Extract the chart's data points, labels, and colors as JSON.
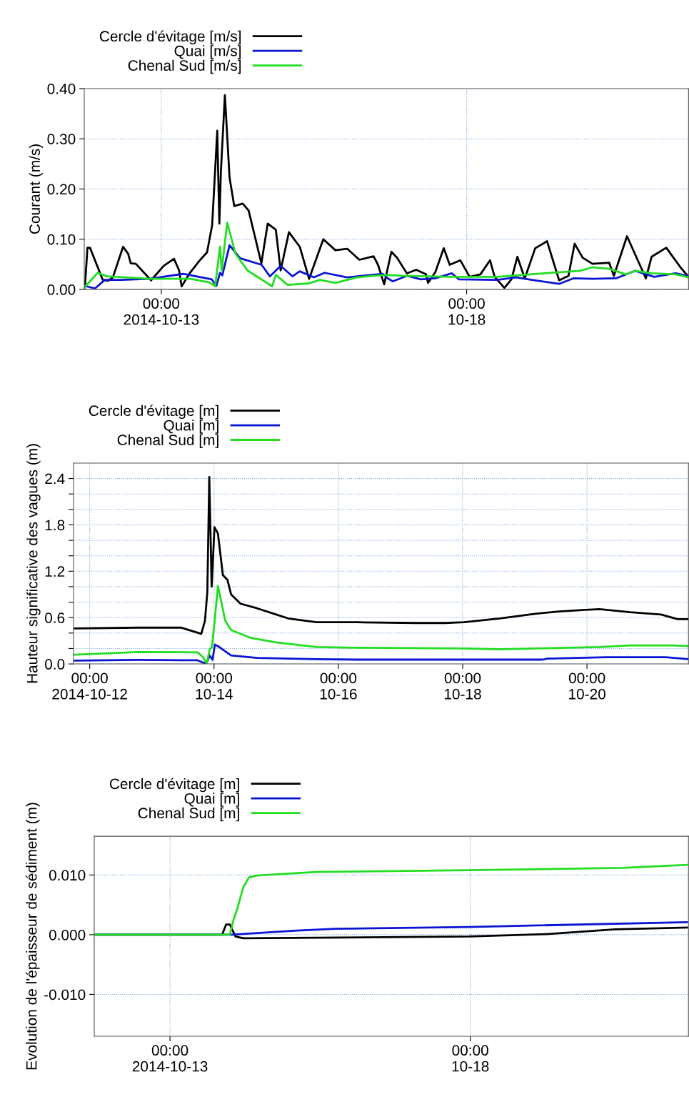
{
  "chart_data": [
    {
      "type": "line",
      "ylabel": "Courant (m/s)",
      "xlim": [
        "2014-10-11T17:45",
        "2014-10-21T15:10"
      ],
      "xticks": [
        {
          "value": "2014-10-13T00:00",
          "label": "00:00\n2014-10-13"
        },
        {
          "value": "2014-10-18T00:00",
          "label": "00:00\n10-18"
        }
      ],
      "ylim": [
        0,
        0.4
      ],
      "yticks": [
        {
          "value": 0,
          "label": "0.00"
        },
        {
          "value": 0.1,
          "label": "0.10"
        },
        {
          "value": 0.2,
          "label": "0.20"
        },
        {
          "value": 0.3,
          "label": "0.30"
        },
        {
          "value": 0.4,
          "label": "0.40"
        }
      ],
      "grid": true,
      "legend": "top left",
      "line_style": "solid",
      "marker": "none",
      "series": [
        {
          "name": "Cercle d'évitage [m/s]",
          "color": "#000000",
          "x": [
            "2014-10-11T18:00",
            "2014-10-11T19:00",
            "2014-10-11T20:00",
            "2014-10-12T01:00",
            "2014-10-12T03:00",
            "2014-10-12T05:00",
            "2014-10-12T09:00",
            "2014-10-12T11:00",
            "2014-10-12T12:00",
            "2014-10-12T14:00",
            "2014-10-12T20:00",
            "2014-10-13T01:00",
            "2014-10-13T05:00",
            "2014-10-13T07:00",
            "2014-10-13T08:00",
            "2014-10-13T11:00",
            "2014-10-13T15:00",
            "2014-10-13T18:00",
            "2014-10-13T20:00",
            "2014-10-13T22:00",
            "2014-10-13T22:50",
            "2014-10-13T23:25",
            "2014-10-14T01:00",
            "2014-10-14T02:50",
            "2014-10-14T04:40",
            "2014-10-14T08:00",
            "2014-10-14T10:20",
            "2014-10-14T15:20",
            "2014-10-14T17:50",
            "2014-10-14T21:00",
            "2014-10-14T22:55",
            "2014-10-15T02:10",
            "2014-10-15T06:25",
            "2014-10-15T10:05",
            "2014-10-15T15:40",
            "2014-10-15T20:25",
            "2014-10-16T01:05",
            "2014-10-16T05:50",
            "2014-10-16T11:25",
            "2014-10-16T13:10",
            "2014-10-16T15:35",
            "2014-10-16T18:25",
            "2014-10-16T20:40",
            "2014-10-17T00:30",
            "2014-10-17T04:10",
            "2014-10-17T08:00",
            "2014-10-17T08:50",
            "2014-10-17T11:40",
            "2014-10-17T15:00",
            "2014-10-17T17:20",
            "2014-10-17T21:30",
            "2014-10-18T01:10",
            "2014-10-18T05:25",
            "2014-10-18T09:10",
            "2014-10-18T11:00",
            "2014-10-18T14:50",
            "2014-10-18T17:35",
            "2014-10-18T19:55",
            "2014-10-18T22:50",
            "2014-10-19T02:55",
            "2014-10-19T07:35",
            "2014-10-19T12:20",
            "2014-10-19T16:00",
            "2014-10-19T18:25",
            "2014-10-19T21:35",
            "2014-10-20T01:25",
            "2014-10-20T08:00",
            "2014-10-20T09:50",
            "2014-10-20T15:00",
            "2014-10-20T18:10",
            "2014-10-20T22:25",
            "2014-10-21T00:40",
            "2014-10-21T06:25",
            "2014-10-21T12:00",
            "2014-10-21T14:50"
          ],
          "values": [
            0.004,
            0.083,
            0.083,
            0.019,
            0.017,
            0.024,
            0.085,
            0.071,
            0.052,
            0.051,
            0.018,
            0.047,
            0.061,
            0.038,
            0.006,
            0.031,
            0.057,
            0.074,
            0.128,
            0.316,
            0.131,
            0.233,
            0.387,
            0.223,
            0.166,
            0.171,
            0.157,
            0.052,
            0.131,
            0.119,
            0.038,
            0.114,
            0.085,
            0.021,
            0.1,
            0.078,
            0.081,
            0.059,
            0.066,
            0.049,
            0.01,
            0.075,
            0.063,
            0.032,
            0.039,
            0.03,
            0.013,
            0.034,
            0.082,
            0.049,
            0.058,
            0.025,
            0.03,
            0.058,
            0.025,
            0.003,
            0.02,
            0.065,
            0.022,
            0.082,
            0.096,
            0.018,
            0.027,
            0.091,
            0.063,
            0.051,
            0.053,
            0.027,
            0.106,
            0.07,
            0.022,
            0.065,
            0.083,
            0.044,
            0.027
          ]
        },
        {
          "name": "Quai [m/s]",
          "color": "#0a14d2",
          "x": [
            "2014-10-11T18:00",
            "2014-10-11T22:00",
            "2014-10-12T01:50",
            "2014-10-12T08:20",
            "2014-10-12T19:30",
            "2014-10-13T08:35",
            "2014-10-13T19:50",
            "2014-10-13T21:40",
            "2014-10-13T23:05",
            "2014-10-14T00:00",
            "2014-10-14T02:50",
            "2014-10-14T07:00",
            "2014-10-14T15:25",
            "2014-10-14T18:40",
            "2014-10-14T22:55",
            "2014-10-15T03:35",
            "2014-10-15T06:25",
            "2014-10-15T12:00",
            "2014-10-15T16:10",
            "2014-10-16T01:05",
            "2014-10-16T15:05",
            "2014-10-16T17:00",
            "2014-10-16T18:55",
            "2014-10-17T00:30",
            "2014-10-17T06:00",
            "2014-10-17T11:40",
            "2014-10-17T18:10",
            "2014-10-17T21:00",
            "2014-10-18T12:00",
            "2014-10-18T19:25",
            "2014-10-19T02:55",
            "2014-10-19T12:20",
            "2014-10-19T17:55",
            "2014-10-20T01:25",
            "2014-10-20T10:40",
            "2014-10-20T18:10",
            "2014-10-21T01:40",
            "2014-10-21T10:05",
            "2014-10-21T14:50"
          ],
          "values": [
            0.007,
            0.002,
            0.019,
            0.019,
            0.021,
            0.031,
            0.02,
            0.007,
            0.033,
            0.028,
            0.088,
            0.062,
            0.049,
            0.026,
            0.047,
            0.026,
            0.036,
            0.024,
            0.033,
            0.024,
            0.031,
            0.022,
            0.016,
            0.027,
            0.02,
            0.022,
            0.032,
            0.02,
            0.019,
            0.024,
            0.018,
            0.011,
            0.022,
            0.021,
            0.022,
            0.037,
            0.025,
            0.032,
            0.027
          ]
        },
        {
          "name": "Chenal Sud [m/s]",
          "color": "#22dd22",
          "x": [
            "2014-10-11T18:00",
            "2014-10-11T23:00",
            "2014-10-12T02:40",
            "2014-10-12T19:30",
            "2014-10-13T11:25",
            "2014-10-13T18:55",
            "2014-10-13T21:10",
            "2014-10-13T23:05",
            "2014-10-13T23:45",
            "2014-10-14T01:55",
            "2014-10-14T05:10",
            "2014-10-14T09:50",
            "2014-10-14T19:35",
            "2014-10-14T21:00",
            "2014-10-15T01:40",
            "2014-10-15T10:05",
            "2014-10-15T14:20",
            "2014-10-15T20:25",
            "2014-10-16T04:50",
            "2014-10-16T16:00",
            "2014-10-16T22:35",
            "2014-10-17T17:20",
            "2014-10-18T12:00",
            "2014-10-19T06:40",
            "2014-10-19T20:40",
            "2014-10-20T01:25",
            "2014-10-20T08:00",
            "2014-10-20T14:30",
            "2014-10-20T18:10",
            "2014-10-21T00:40",
            "2014-10-21T10:05",
            "2014-10-21T15:10"
          ],
          "values": [
            0.005,
            0.033,
            0.026,
            0.021,
            0.021,
            0.014,
            0.006,
            0.085,
            0.038,
            0.133,
            0.071,
            0.038,
            0.006,
            0.029,
            0.009,
            0.012,
            0.019,
            0.013,
            0.024,
            0.029,
            0.027,
            0.025,
            0.025,
            0.032,
            0.037,
            0.044,
            0.041,
            0.03,
            0.037,
            0.032,
            0.03,
            0.024
          ]
        }
      ]
    },
    {
      "type": "line",
      "ylabel": "Hauteur significative des vagues (m)",
      "xlim": [
        "2014-10-11T17:45",
        "2014-10-21T15:10"
      ],
      "xticks": [
        {
          "value": "2014-10-12T00:00",
          "label": "00:00\n2014-10-12"
        },
        {
          "value": "2014-10-14T00:00",
          "label": "00:00\n10-14"
        },
        {
          "value": "2014-10-16T00:00",
          "label": "00:00\n10-16"
        },
        {
          "value": "2014-10-18T00:00",
          "label": "00:00\n10-18"
        },
        {
          "value": "2014-10-20T00:00",
          "label": "00:00\n10-20"
        }
      ],
      "ylim": [
        0,
        2.6
      ],
      "yticks": [
        {
          "value": 0,
          "label": "0.0"
        },
        {
          "value": 0.2,
          "label": null
        },
        {
          "value": 0.4,
          "label": null
        },
        {
          "value": 0.6,
          "label": "0.6"
        },
        {
          "value": 0.8,
          "label": null
        },
        {
          "value": 1.0,
          "label": null
        },
        {
          "value": 1.2,
          "label": "1.2"
        },
        {
          "value": 1.4,
          "label": null
        },
        {
          "value": 1.6,
          "label": null
        },
        {
          "value": 1.8,
          "label": "1.8"
        },
        {
          "value": 2.0,
          "label": null
        },
        {
          "value": 2.2,
          "label": null
        },
        {
          "value": 2.4,
          "label": "2.4"
        }
      ],
      "grid": true,
      "legend": "top left",
      "line_style": "solid",
      "marker": "none",
      "series": [
        {
          "name": "Cercle d'évitage [m]",
          "color": "#000000",
          "x": [
            "2014-10-11T18:00",
            "2014-10-12T18:50",
            "2014-10-13T11:20",
            "2014-10-13T13:10",
            "2014-10-13T19:05",
            "2014-10-13T20:30",
            "2014-10-13T21:25",
            "2014-10-13T22:10",
            "2014-10-13T23:05",
            "2014-10-14T00:10",
            "2014-10-14T01:30",
            "2014-10-14T03:25",
            "2014-10-14T05:10",
            "2014-10-14T06:35",
            "2014-10-14T10:15",
            "2014-10-14T16:40",
            "2014-10-15T00:00",
            "2014-10-15T04:35",
            "2014-10-15T15:35",
            "2014-10-16T07:10",
            "2014-10-17T06:05",
            "2014-10-17T17:10",
            "2014-10-18T00:30",
            "2014-10-18T14:20",
            "2014-10-19T04:00",
            "2014-10-19T13:10",
            "2014-10-19T23:20",
            "2014-10-20T04:50",
            "2014-10-20T16:40",
            "2014-10-21T04:35",
            "2014-10-21T11:00",
            "2014-10-21T15:10"
          ],
          "values": [
            0.46,
            0.47,
            0.47,
            0.45,
            0.39,
            0.56,
            0.93,
            2.42,
            1.0,
            1.77,
            1.69,
            1.15,
            1.09,
            0.9,
            0.78,
            0.72,
            0.64,
            0.59,
            0.54,
            0.54,
            0.53,
            0.53,
            0.54,
            0.59,
            0.65,
            0.68,
            0.7,
            0.71,
            0.67,
            0.64,
            0.58,
            0.58
          ]
        },
        {
          "name": "Quai [m]",
          "color": "#0a14d2",
          "x": [
            "2014-10-11T18:00",
            "2014-10-12T18:50",
            "2014-10-13T17:40",
            "2014-10-13T19:50",
            "2014-10-13T21:00",
            "2014-10-13T22:20",
            "2014-10-13T23:25",
            "2014-10-14T00:20",
            "2014-10-14T02:00",
            "2014-10-14T06:35",
            "2014-10-14T16:40",
            "2014-10-15T15:35",
            "2014-10-16T07:10",
            "2014-10-19T06:50",
            "2014-10-19T08:35",
            "2014-10-20T07:30",
            "2014-10-21T06:25",
            "2014-10-21T15:10"
          ],
          "values": [
            0.044,
            0.053,
            0.047,
            0.016,
            0.006,
            0.11,
            0.053,
            0.25,
            0.22,
            0.11,
            0.078,
            0.062,
            0.056,
            0.056,
            0.068,
            0.087,
            0.087,
            0.062
          ]
        },
        {
          "name": "Chenal Sud [m]",
          "color": "#22dd22",
          "x": [
            "2014-10-11T18:00",
            "2014-10-12T18:50",
            "2014-10-13T17:40",
            "2014-10-13T19:35",
            "2014-10-13T21:10",
            "2014-10-13T22:20",
            "2014-10-13T23:10",
            "2014-10-14T00:10",
            "2014-10-14T01:30",
            "2014-10-14T04:20",
            "2014-10-14T06:35",
            "2014-10-14T13:55",
            "2014-10-15T00:00",
            "2014-10-15T15:35",
            "2014-10-16T07:10",
            "2014-10-18T00:30",
            "2014-10-18T14:20",
            "2014-10-19T04:00",
            "2014-10-20T04:50",
            "2014-10-20T16:40",
            "2014-10-21T09:10",
            "2014-10-21T15:10"
          ],
          "values": [
            0.12,
            0.155,
            0.15,
            0.093,
            0.006,
            0.19,
            0.22,
            0.53,
            1.01,
            0.56,
            0.44,
            0.34,
            0.28,
            0.22,
            0.21,
            0.2,
            0.19,
            0.2,
            0.22,
            0.24,
            0.24,
            0.23
          ]
        }
      ]
    },
    {
      "type": "line",
      "ylabel": "Evolution de l'épaisseur de sédiment (m)",
      "xlim": [
        "2014-10-11T17:45",
        "2014-10-21T15:10"
      ],
      "xticks": [
        {
          "value": "2014-10-13T00:00",
          "label": "00:00\n2014-10-13"
        },
        {
          "value": "2014-10-18T00:00",
          "label": "00:00\n10-18"
        }
      ],
      "ylim": [
        -0.017,
        0.0165
      ],
      "yticks": [
        {
          "value": -0.01,
          "label": "-0.010"
        },
        {
          "value": 0,
          "label": "0.000"
        },
        {
          "value": 0.01,
          "label": "0.010"
        }
      ],
      "grid": true,
      "legend": "top left",
      "line_style": "solid",
      "marker": "none",
      "series": [
        {
          "name": "Cercle d'évitage [m]",
          "color": "#000000",
          "x": [
            "2014-10-11T18:00",
            "2014-10-13T20:50",
            "2014-10-13T22:25",
            "2014-10-13T23:55",
            "2014-10-14T02:10",
            "2014-10-14T05:20",
            "2014-10-15T10:25",
            "2014-10-17T23:35",
            "2014-10-19T06:20",
            "2014-10-20T09:55",
            "2014-10-21T14:35"
          ],
          "values": [
            0,
            0,
            0.0017,
            0.0017,
            -0.0003,
            -0.0006,
            -0.0005,
            -0.0003,
            0.0001,
            0.0009,
            0.0012
          ]
        },
        {
          "name": "Quai [m]",
          "color": "#0a14d2",
          "x": [
            "2014-10-11T18:00",
            "2014-10-14T00:40",
            "2014-10-15T02:40",
            "2014-10-15T18:00",
            "2014-10-17T23:35",
            "2014-10-21T14:35"
          ],
          "values": [
            0,
            0,
            0.0007,
            0.001,
            0.0013,
            0.0021
          ]
        },
        {
          "name": "Chenal Sud [m]",
          "color": "#22dd22",
          "x": [
            "2014-10-11T18:00",
            "2014-10-13T23:55",
            "2014-10-14T01:25",
            "2014-10-14T03:00",
            "2014-10-14T05:20",
            "2014-10-14T07:35",
            "2014-10-14T10:35",
            "2014-10-15T10:25",
            "2014-10-17T23:35",
            "2014-10-20T12:55",
            "2014-10-21T14:35"
          ],
          "values": [
            0,
            0,
            0.0025,
            0.0045,
            0.008,
            0.0096,
            0.0099,
            0.0105,
            0.0108,
            0.0112,
            0.0117
          ]
        }
      ]
    }
  ]
}
